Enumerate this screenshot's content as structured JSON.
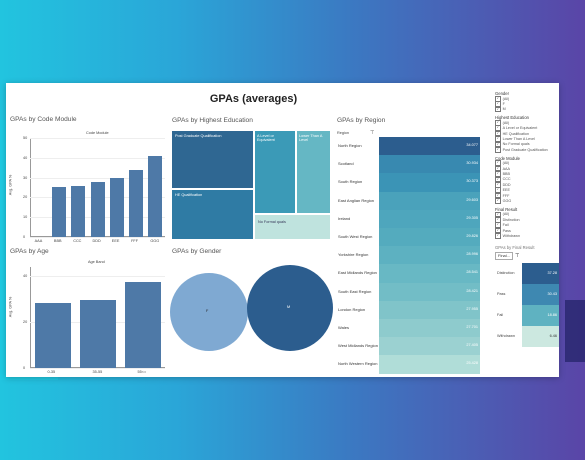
{
  "dashboard": {
    "title": "GPAs (averages)"
  },
  "colors": {
    "bar": "#4e79a7",
    "pie_female": "#7fa9d2",
    "pie_male": "#2c5d8e",
    "dark": "#2f6792"
  },
  "code_module": {
    "title": "GPAs by Code Module",
    "axis_label": "Code Module",
    "y_label": "Avg. GPA %",
    "y_ticks": [
      "0",
      "10",
      "20",
      "30",
      "40",
      "50"
    ],
    "chart_data": {
      "type": "bar",
      "categories": [
        "AAA",
        "BBB",
        "CCC",
        "DDD",
        "EEE",
        "FFF",
        "GGG"
      ],
      "values": [
        0,
        25.5,
        26,
        28,
        30,
        34,
        41
      ],
      "ylim": [
        0,
        50
      ]
    }
  },
  "education": {
    "title": "GPAs by Highest Education",
    "cells": [
      {
        "label": "Post Graduate Qualification",
        "color": "#2f6792"
      },
      {
        "label": "HE Qualification",
        "color": "#2f7ba4"
      },
      {
        "label": "A Level or Equivalent",
        "color": "#3b9ab7"
      },
      {
        "label": "Lower Than A Level",
        "color": "#65b7c4"
      },
      {
        "label": "No Formal quals",
        "color": "#bfe3de"
      }
    ]
  },
  "region": {
    "title": "GPAs by Region",
    "filter_label": "Region",
    "rows": [
      {
        "name": "North Region",
        "value": "34.077",
        "color": "#2c5d8e"
      },
      {
        "name": "Scotland",
        "value": "30.934",
        "color": "#3889b0"
      },
      {
        "name": "South Region",
        "value": "30.373",
        "color": "#3b94b6"
      },
      {
        "name": "East Anglian Region",
        "value": "29.603",
        "color": "#4aa2bb"
      },
      {
        "name": "Ireland",
        "value": "29.305",
        "color": "#4ea6bd"
      },
      {
        "name": "South West Region",
        "value": "29.826",
        "color": "#54abbe"
      },
      {
        "name": "Yorkshire Region",
        "value": "28.996",
        "color": "#5db1c1"
      },
      {
        "name": "East Midlands Region",
        "value": "28.541",
        "color": "#68b8c4"
      },
      {
        "name": "South East Region",
        "value": "28.421",
        "color": "#72bdc6"
      },
      {
        "name": "London Region",
        "value": "27.955",
        "color": "#80c4c9"
      },
      {
        "name": "Wales",
        "value": "27.701",
        "color": "#8ecbcd"
      },
      {
        "name": "West Midlands Region",
        "value": "27.405",
        "color": "#9bd1d1"
      },
      {
        "name": "North Western Region",
        "value": "25.428",
        "color": "#b0ddd8"
      }
    ]
  },
  "age": {
    "title": "GPAs by Age",
    "axis_label": "Age Band",
    "y_label": "Avg. GPA %",
    "y_ticks": [
      "0",
      "20",
      "40"
    ],
    "chart_data": {
      "type": "bar",
      "categories": [
        "0-35",
        "35-55",
        "55<="
      ],
      "values": [
        28.5,
        29.5,
        37.5
      ],
      "ylim": [
        0,
        44
      ]
    }
  },
  "gender": {
    "title": "GPAs by Gender",
    "chart_data": {
      "type": "pie",
      "labels": [
        "F",
        "M"
      ]
    }
  },
  "filters": {
    "gender": {
      "title": "Gender",
      "items": [
        "(All)",
        "F",
        "M"
      ]
    },
    "education": {
      "title": "Highest Education",
      "items": [
        "(All)",
        "A Level or Equivalent",
        "HE Qualification",
        "Lower Than A Level",
        "No Formal quals",
        "Post Graduate Qualification"
      ]
    },
    "code_module": {
      "title": "Code Module",
      "items": [
        "(All)",
        "AAA",
        "BBB",
        "CCC",
        "DDD",
        "EEE",
        "FFF",
        "GGG"
      ]
    },
    "final_result": {
      "title": "Final Result",
      "items": [
        "(All)",
        "Distinction",
        "Fail",
        "Pass",
        "Withdrawn"
      ]
    }
  },
  "final_result_chart": {
    "title": "GPAs by Final Result",
    "dropdown_label": "Final...",
    "rows": [
      {
        "name": "Distinction",
        "value": "37.28",
        "color": "#2c5d8e"
      },
      {
        "name": "Pass",
        "value": "30.43",
        "color": "#3e88b1"
      },
      {
        "name": "Fail",
        "value": "18.86",
        "color": "#5fb2c1"
      },
      {
        "name": "Withdrawn",
        "value": "6.46",
        "color": "#cce8e0"
      }
    ]
  }
}
